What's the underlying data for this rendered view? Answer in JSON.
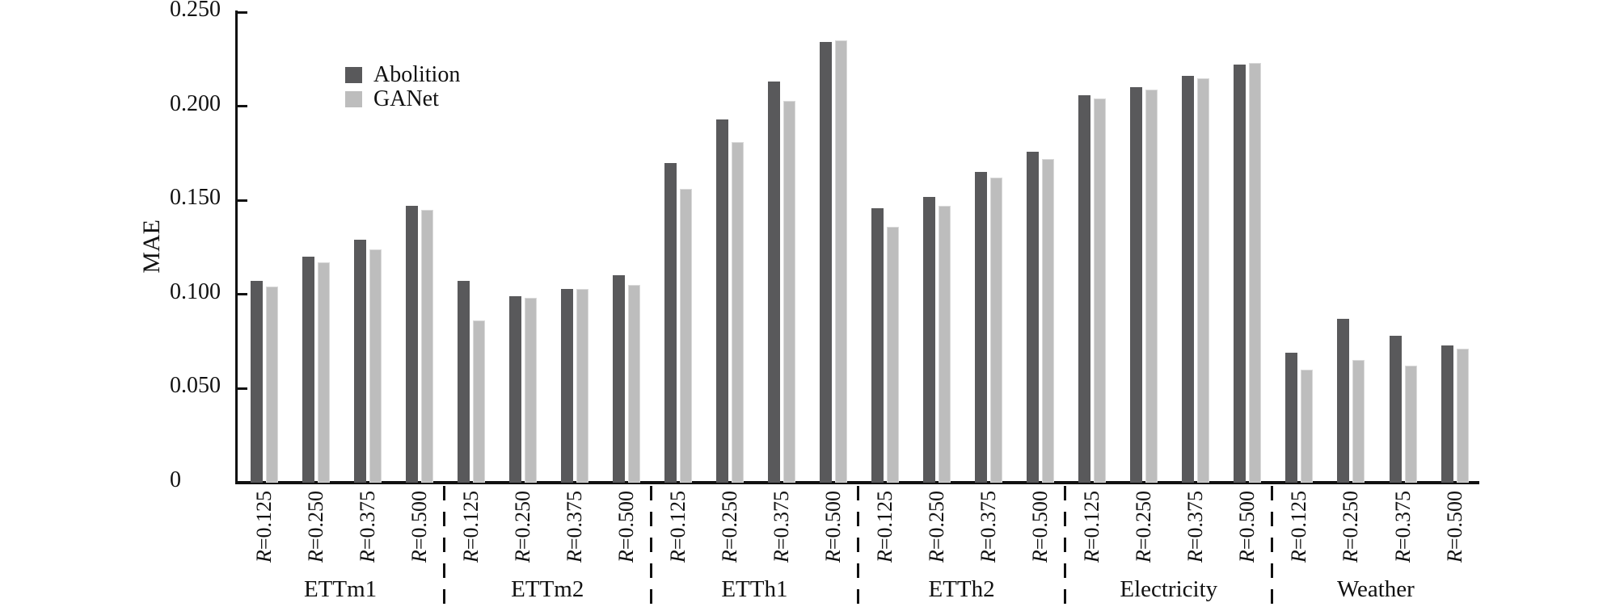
{
  "figure": {
    "background": "#ffffff",
    "axis_color": "#111111"
  },
  "legend": {
    "items": [
      {
        "label": "Abolition",
        "color": "#59595b"
      },
      {
        "label": "GANet",
        "color": "#bdbdbd"
      }
    ]
  },
  "chart_data": {
    "type": "bar",
    "title": "",
    "xlabel": "",
    "ylabel": "MAE",
    "ylim": [
      0,
      0.25
    ],
    "ytick_labels": [
      "0",
      "0.050",
      "0.100",
      "0.150",
      "0.200",
      "0.250"
    ],
    "ytick_values": [
      0,
      0.05,
      0.1,
      0.15,
      0.2,
      0.25
    ],
    "grid": false,
    "legend_position": "upper-left-inside",
    "groups": [
      "ETTm1",
      "ETTm2",
      "ETTh1",
      "ETTh2",
      "Electricity",
      "Weather"
    ],
    "bar_labels": [
      "R=0.125",
      "R=0.250",
      "R=0.375",
      "R=0.500"
    ],
    "group_separator_style": "dashed",
    "series": [
      {
        "name": "Abolition",
        "color": "#59595b",
        "values": [
          [
            0.107,
            0.12,
            0.129,
            0.147
          ],
          [
            0.107,
            0.099,
            0.103,
            0.11
          ],
          [
            0.17,
            0.193,
            0.213,
            0.234
          ],
          [
            0.146,
            0.152,
            0.165,
            0.176
          ],
          [
            0.206,
            0.21,
            0.216,
            0.222
          ],
          [
            0.069,
            0.087,
            0.078,
            0.073
          ]
        ]
      },
      {
        "name": "GANet",
        "color": "#bdbdbd",
        "values": [
          [
            0.104,
            0.117,
            0.124,
            0.145
          ],
          [
            0.086,
            0.098,
            0.103,
            0.105
          ],
          [
            0.156,
            0.181,
            0.203,
            0.235
          ],
          [
            0.136,
            0.147,
            0.162,
            0.172
          ],
          [
            0.204,
            0.209,
            0.215,
            0.223
          ],
          [
            0.06,
            0.065,
            0.062,
            0.071
          ]
        ]
      }
    ]
  }
}
